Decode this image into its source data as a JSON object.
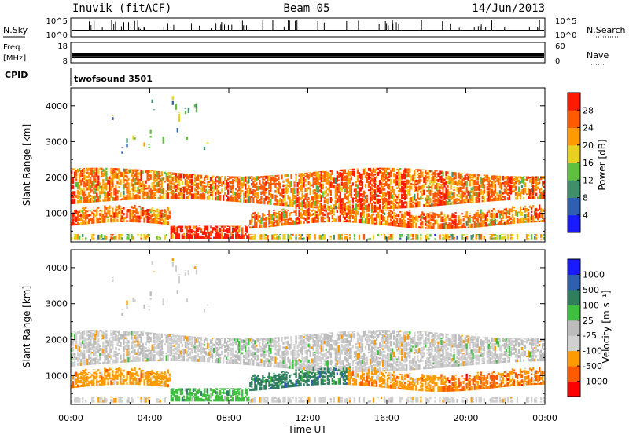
{
  "header": {
    "station": "Inuvik (fitACF)",
    "beam": "Beam 05",
    "date": "14/Jun/2013"
  },
  "strips": {
    "nsky_label": "N.Sky",
    "nsky_ticks": [
      "10^5",
      "10^0"
    ],
    "nsearch_label": "N.Search",
    "nsearch_ticks": [
      "10^5",
      "10^0"
    ],
    "freq_label": "Freq.",
    "freq_unit": "[MHz]",
    "freq_ticks": [
      "18",
      "8"
    ],
    "nave_label": "Nave",
    "nave_ticks": [
      "60",
      "0"
    ],
    "cpid_label": "CPID",
    "cpid_value": "twofsound 3501"
  },
  "colors": {
    "power_scale": [
      "#1a1aff",
      "#2f5fb0",
      "#3f8f6a",
      "#5fbf3f",
      "#e8d020",
      "#ff9a00",
      "#ff5a00",
      "#ff1a00"
    ],
    "velocity_scale": [
      "#ff0000",
      "#ff5a00",
      "#ff9a00",
      "#d0d0d0",
      "#bcbcbc",
      "#3fbf3f",
      "#2f7f5f",
      "#2f5faf",
      "#1a1aff"
    ]
  },
  "chart_data": [
    {
      "type": "heatmap",
      "name": "power",
      "ylabel": "Slant Range [km]",
      "x_ticks": [
        "00:00",
        "04:00",
        "08:00",
        "12:00",
        "16:00",
        "20:00",
        "00:00"
      ],
      "y_ticks": [
        1000,
        2000,
        3000,
        4000
      ],
      "ylim": [
        200,
        4500
      ],
      "colorbar": {
        "label": "Power [dB]",
        "ticks": [
          "4",
          "8",
          "12",
          "16",
          "20",
          "24",
          "28"
        ]
      }
    },
    {
      "type": "heatmap",
      "name": "velocity",
      "ylabel": "Slant Range [km]",
      "xlabel": "Time UT",
      "x_ticks": [
        "00:00",
        "04:00",
        "08:00",
        "12:00",
        "16:00",
        "20:00",
        "00:00"
      ],
      "y_ticks": [
        1000,
        2000,
        3000,
        4000
      ],
      "ylim": [
        200,
        4500
      ],
      "colorbar": {
        "label": "Velocity [m s⁻¹]",
        "ticks": [
          "-1000",
          "-500",
          "-100",
          "-25",
          "25",
          "100",
          "500",
          "1000"
        ]
      }
    }
  ]
}
